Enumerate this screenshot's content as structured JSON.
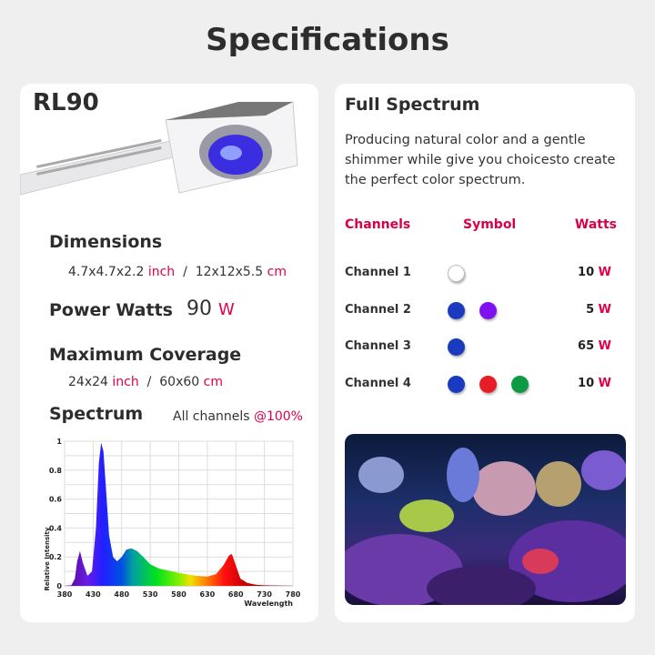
{
  "title": "Specifications",
  "left": {
    "model": "RL90",
    "dimensions": {
      "heading": "Dimensions",
      "inch_value": "4.7x4.7x2.2",
      "inch_unit": "inch",
      "sep": "/",
      "cm_value": "12x12x5.5",
      "cm_unit": "cm"
    },
    "power": {
      "heading": "Power Watts",
      "value": "90",
      "unit": "W"
    },
    "coverage": {
      "heading": "Maximum Coverage",
      "inch_value": "24x24",
      "inch_unit": "inch",
      "sep": "/",
      "cm_value": "60x60",
      "cm_unit": "cm"
    },
    "spectrum": {
      "heading": "Spectrum",
      "note": "All channels",
      "note_accent": "@100%"
    }
  },
  "right": {
    "heading": "Full Spectrum",
    "description": "Producing natural color and a gentle shimmer while give you choicesto create the perfect color spectrum.",
    "columns": {
      "channels": "Channels",
      "symbol": "Symbol",
      "watts": "Watts"
    },
    "channels": [
      {
        "name": "Channel 1",
        "watts": "10",
        "unit": "W",
        "colors": [
          "#ffffff"
        ]
      },
      {
        "name": "Channel 2",
        "watts": "5",
        "unit": "W",
        "colors": [
          "#1a3bbf",
          "#7f10f0"
        ]
      },
      {
        "name": "Channel 3",
        "watts": "65",
        "unit": "W",
        "colors": [
          "#1a3bbf"
        ]
      },
      {
        "name": "Channel 4",
        "watts": "10",
        "unit": "W",
        "colors": [
          "#1a3bbf",
          "#e81c24",
          "#0c9a45"
        ]
      }
    ]
  },
  "chart_data": {
    "type": "area",
    "xlabel": "Wavelength",
    "ylabel": "Relative Intensity",
    "xlim": [
      380,
      780
    ],
    "ylim": [
      0,
      1
    ],
    "xticks": [
      380,
      430,
      480,
      530,
      580,
      630,
      680,
      730,
      780
    ],
    "yticks": [
      0,
      0.2,
      0.4,
      0.6,
      0.8,
      1
    ],
    "grid": true,
    "x": [
      380,
      392,
      398,
      402,
      407,
      412,
      420,
      428,
      435,
      440,
      444,
      448,
      452,
      458,
      465,
      472,
      480,
      488,
      497,
      507,
      518,
      530,
      545,
      580,
      610,
      630,
      645,
      658,
      668,
      673,
      680,
      688,
      700,
      715,
      730,
      780
    ],
    "y": [
      0,
      0.005,
      0.05,
      0.17,
      0.24,
      0.16,
      0.07,
      0.1,
      0.4,
      0.85,
      0.99,
      0.93,
      0.7,
      0.35,
      0.2,
      0.17,
      0.2,
      0.25,
      0.26,
      0.24,
      0.2,
      0.15,
      0.12,
      0.09,
      0.07,
      0.065,
      0.08,
      0.14,
      0.21,
      0.22,
      0.14,
      0.05,
      0.02,
      0.008,
      0.004,
      0
    ]
  }
}
